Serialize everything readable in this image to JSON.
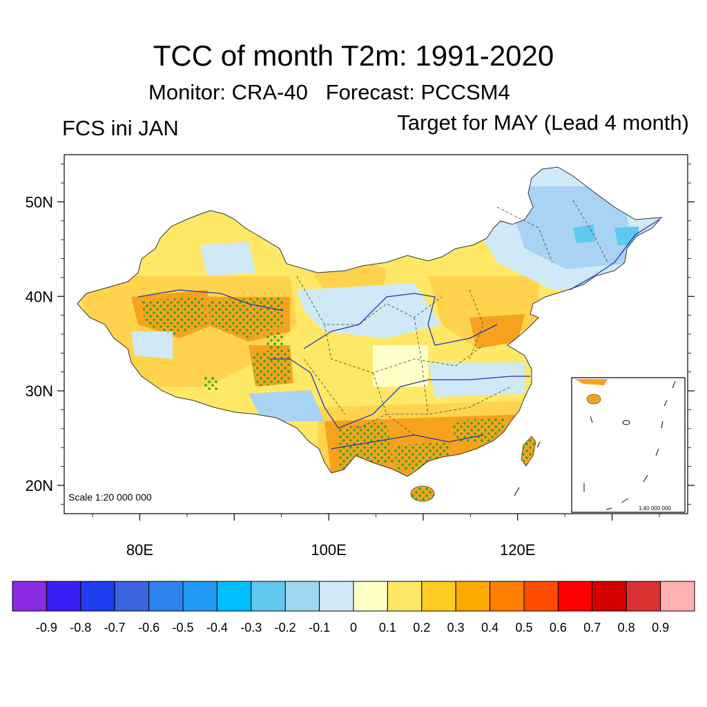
{
  "title": "TCC of month T2m: 1991-2020",
  "subtitle": "Monitor: CRA-40   Forecast: PCCSM4",
  "left_label": "FCS ini JAN",
  "right_label": "Target for MAY (Lead 4 month)",
  "scale_main": "Scale 1:20 000 000",
  "scale_inset": "1:40 000 000",
  "lat_labels": [
    "50N",
    "40N",
    "30N",
    "20N"
  ],
  "lon_labels": [
    "80E",
    "100E",
    "120E"
  ],
  "map": {
    "lat_values": [
      50,
      40,
      30,
      20
    ],
    "lon_values": [
      80,
      100,
      120
    ],
    "lat_range": [
      17,
      55
    ],
    "lon_range": [
      72,
      138
    ]
  },
  "colorbar": {
    "colors": [
      "#8a2be2",
      "#3a1ff5",
      "#1e3cf0",
      "#3c64dc",
      "#2e82ef",
      "#1f9bf5",
      "#00bfff",
      "#5fc8f0",
      "#9fd5f0",
      "#cfe9f6",
      "#ffffc8",
      "#ffe866",
      "#ffcc22",
      "#ffaa00",
      "#ff8000",
      "#ff4d00",
      "#ff0000",
      "#d50000",
      "#d83232",
      "#ffb0b0"
    ],
    "labels": [
      "-0.9",
      "-0.8",
      "-0.7",
      "-0.6",
      "-0.5",
      "-0.4",
      "-0.3",
      "-0.2",
      "-0.1",
      "0",
      "0.1",
      "0.2",
      "0.3",
      "0.4",
      "0.5",
      "0.6",
      "0.7",
      "0.8",
      "0.9"
    ]
  },
  "colors": {
    "frame": "#000000",
    "river": "#2233bb",
    "stipple": "#22aa22",
    "positive_fill": "#ffd34d",
    "strong_fill": "#f7a21d",
    "negative_fill": "#a9d3f2"
  }
}
